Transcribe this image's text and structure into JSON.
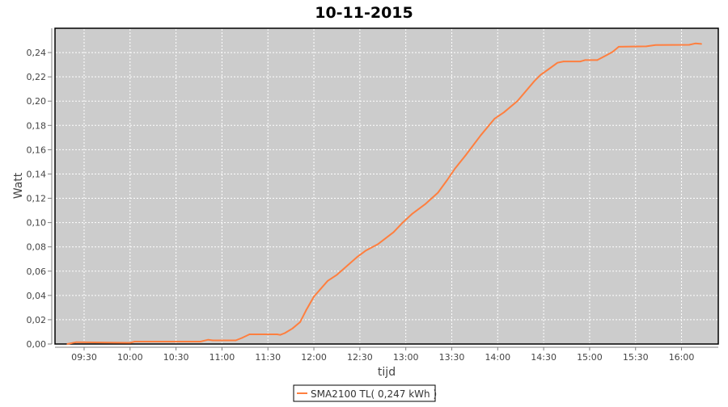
{
  "chart_data": {
    "type": "line",
    "title": "10-11-2015",
    "xlabel": "tijd",
    "ylabel": "Watt",
    "xlim": [
      "09:11",
      "16:24"
    ],
    "ylim": [
      0,
      0.26
    ],
    "x_ticks": [
      "09:30",
      "10:00",
      "10:30",
      "11:00",
      "11:30",
      "12:00",
      "12:30",
      "13:00",
      "13:30",
      "14:00",
      "14:30",
      "15:00",
      "15:30",
      "16:00"
    ],
    "y_ticks": [
      "0,00",
      "0,02",
      "0,04",
      "0,06",
      "0,08",
      "0,10",
      "0,12",
      "0,14",
      "0,16",
      "0,18",
      "0,20",
      "0,22",
      "0,24"
    ],
    "grid": true,
    "legend_position": "bottom",
    "background_color": "#cccccc",
    "series": [
      {
        "name": "SMA2100 TL( 0,247 kWh )",
        "color": "#ff7f3f",
        "x": [
          "09:19",
          "09:25",
          "10:00",
          "10:03",
          "10:46",
          "10:51",
          "10:54",
          "11:09",
          "11:13",
          "11:18",
          "11:36",
          "11:38",
          "11:41",
          "11:46",
          "11:51",
          "11:55",
          "12:00",
          "12:09",
          "12:15",
          "12:20",
          "12:28",
          "12:34",
          "12:42",
          "12:52",
          "12:58",
          "13:04",
          "13:13",
          "13:21",
          "13:27",
          "13:32",
          "13:39",
          "13:49",
          "13:58",
          "14:04",
          "14:13",
          "14:24",
          "14:28",
          "14:33",
          "14:39",
          "14:43",
          "14:54",
          "14:57",
          "15:05",
          "15:11",
          "15:15",
          "15:19",
          "15:37",
          "15:43",
          "16:05",
          "16:09",
          "16:13"
        ],
        "y": [
          0.0,
          0.0015,
          0.001,
          0.002,
          0.002,
          0.0035,
          0.003,
          0.003,
          0.005,
          0.008,
          0.008,
          0.0075,
          0.009,
          0.0128,
          0.018,
          0.028,
          0.039,
          0.052,
          0.057,
          0.0625,
          0.0714,
          0.077,
          0.0824,
          0.092,
          0.1,
          0.107,
          0.1155,
          0.1246,
          0.135,
          0.1443,
          0.1553,
          0.172,
          0.1856,
          0.1907,
          0.2002,
          0.2166,
          0.2216,
          0.2261,
          0.2316,
          0.2327,
          0.2327,
          0.2338,
          0.2338,
          0.2378,
          0.2405,
          0.2448,
          0.2451,
          0.2462,
          0.2464,
          0.2475,
          0.2471
        ]
      }
    ]
  }
}
